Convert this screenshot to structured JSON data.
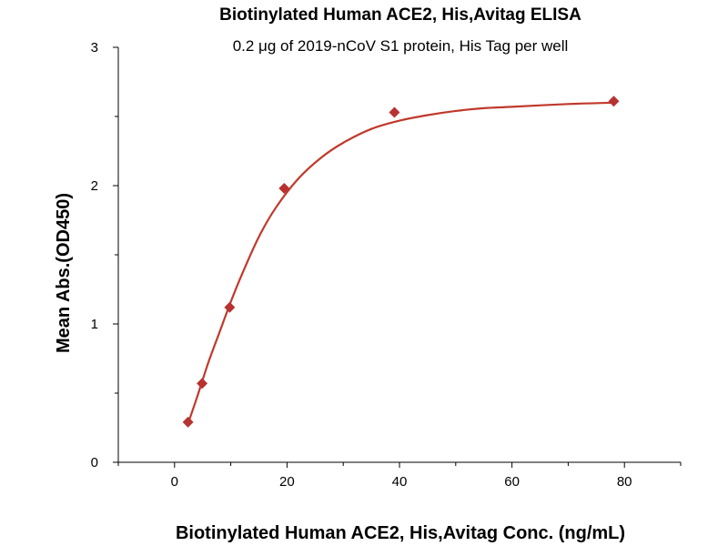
{
  "chart_data": {
    "type": "scatter",
    "title": "Biotinylated Human ACE2, His,Avitag ELISA",
    "subtitle": "0.2 μg of 2019-nCoV S1 protein, His Tag per well",
    "xlabel": "Biotinylated Human ACE2, His,Avitag Conc. (ng/mL)",
    "ylabel": "Mean Abs.(OD450)",
    "xlim": [
      -10,
      90
    ],
    "ylim": [
      0,
      3
    ],
    "x_ticks": [
      0,
      20,
      40,
      60,
      80
    ],
    "y_ticks": [
      0,
      1,
      2,
      3
    ],
    "x_tick_labels": [
      "0",
      "20",
      "40",
      "60",
      "80"
    ],
    "y_tick_labels": [
      "0",
      "1",
      "2",
      "3"
    ],
    "grid": false,
    "legend": "none",
    "colors": {
      "marker": "#b83232",
      "curve": "#c0392b"
    },
    "series": [
      {
        "marker": "diamond",
        "x": [
          2.4,
          4.9,
          9.8,
          19.5,
          39.1,
          78.1
        ],
        "y": [
          0.29,
          0.57,
          1.12,
          1.98,
          2.53,
          2.61
        ]
      }
    ],
    "fit_curve": {
      "model": "4-parameter logistic",
      "x": [
        2.4,
        4,
        6,
        8,
        10,
        12,
        15,
        18,
        22,
        26,
        30,
        35,
        40,
        45,
        50,
        55,
        60,
        70,
        78.1
      ],
      "y": [
        0.28,
        0.47,
        0.72,
        0.94,
        1.16,
        1.36,
        1.63,
        1.84,
        2.05,
        2.2,
        2.31,
        2.41,
        2.47,
        2.51,
        2.54,
        2.56,
        2.57,
        2.59,
        2.6
      ]
    }
  }
}
